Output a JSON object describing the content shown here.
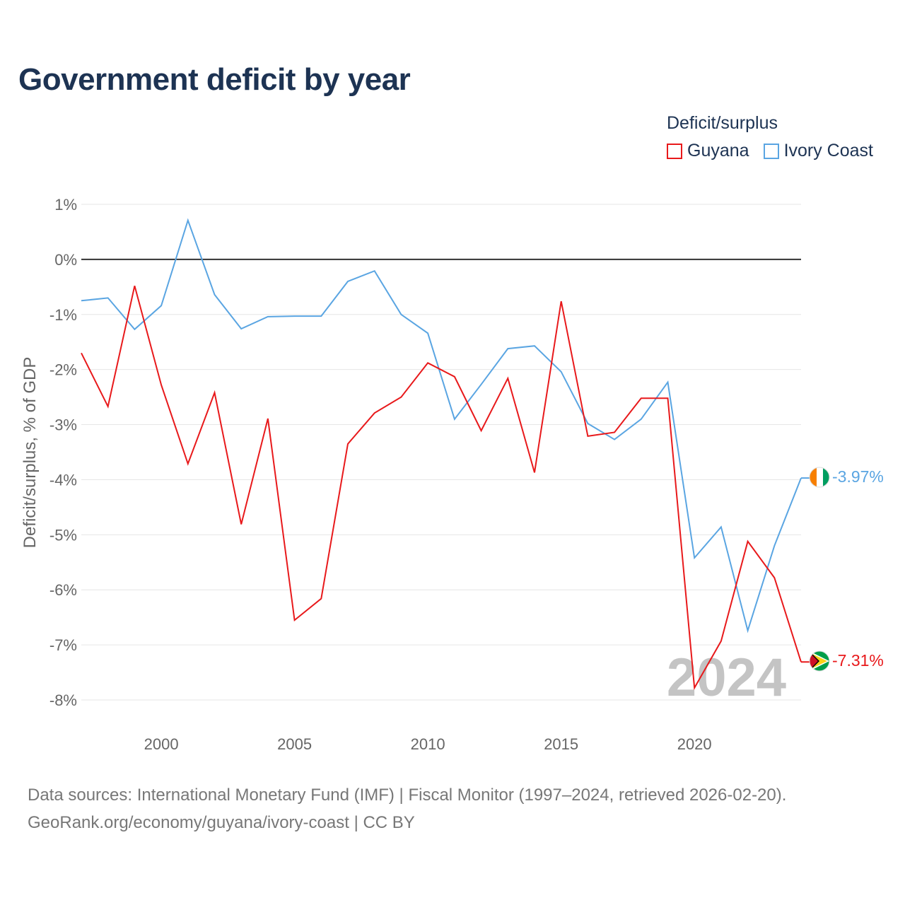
{
  "colors": {
    "title": "#1d3353",
    "guyana": "#e8191b",
    "ivory_coast": "#5aa5e2",
    "grid": "#e6e6e6",
    "zero_line": "#333333",
    "axis_text": "#666666"
  },
  "chart_data": {
    "type": "line",
    "title": "Government deficit by year",
    "ylabel": "Deficit/surplus, % of GDP",
    "xlabel": "",
    "legend_title": "Deficit/surplus",
    "legend_position": "top-right",
    "ylim": [
      -8,
      1
    ],
    "xlim": [
      1997,
      2024
    ],
    "yticks": [
      1,
      0,
      -1,
      -2,
      -3,
      -4,
      -5,
      -6,
      -7,
      -8
    ],
    "ytick_labels": [
      "1%",
      "0%",
      "-1%",
      "-2%",
      "-3%",
      "-4%",
      "-5%",
      "-6%",
      "-7%",
      "-8%"
    ],
    "xticks": [
      2000,
      2005,
      2010,
      2015,
      2020
    ],
    "xtick_labels": [
      "2000",
      "2005",
      "2010",
      "2015",
      "2020"
    ],
    "grid": true,
    "x": [
      1997,
      1998,
      1999,
      2000,
      2001,
      2002,
      2003,
      2004,
      2005,
      2006,
      2007,
      2008,
      2009,
      2010,
      2011,
      2012,
      2013,
      2014,
      2015,
      2016,
      2017,
      2018,
      2019,
      2020,
      2021,
      2022,
      2023,
      2024
    ],
    "series": [
      {
        "name": "Guyana",
        "color": "#e8191b",
        "end_label": "-7.31%",
        "values": [
          -1.7,
          -2.67,
          -0.48,
          -2.28,
          -3.71,
          -2.42,
          -4.81,
          -2.89,
          -6.55,
          -6.16,
          -3.35,
          -2.79,
          -2.5,
          -1.88,
          -2.13,
          -3.11,
          -2.16,
          -3.87,
          -0.76,
          -3.21,
          -3.14,
          -2.52,
          -2.52,
          -7.78,
          -6.93,
          -5.12,
          -5.78,
          -7.31
        ]
      },
      {
        "name": "Ivory Coast",
        "color": "#5aa5e2",
        "end_label": "-3.97%",
        "values": [
          -0.75,
          -0.7,
          -1.27,
          -0.84,
          0.71,
          -0.64,
          -1.26,
          -1.04,
          -1.03,
          -1.03,
          -0.4,
          -0.21,
          -1.0,
          -1.34,
          -2.9,
          -2.27,
          -1.62,
          -1.57,
          -2.04,
          -2.98,
          -3.27,
          -2.9,
          -2.23,
          -5.42,
          -4.86,
          -6.74,
          -5.2,
          -3.97
        ]
      }
    ],
    "watermark_year": "2024"
  },
  "footer": {
    "line1": "Data sources: International Monetary Fund (IMF) | Fiscal Monitor (1997–2024, retrieved 2026-02-20).",
    "line2": "GeoRank.org/economy/guyana/ivory-coast | CC BY"
  }
}
